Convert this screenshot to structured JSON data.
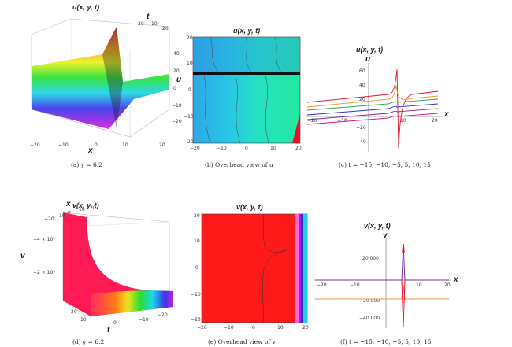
{
  "figure": {
    "panels": [
      {
        "id": "a",
        "title": "u(x, y, t)",
        "caption": "(a) y = 6.2",
        "axes": {
          "x": "x",
          "y": "t",
          "z": "u"
        },
        "x_ticks": [
          "−20",
          "−10",
          "0",
          "10",
          "20"
        ],
        "t_ticks": [
          "−20",
          "10",
          "20"
        ],
        "z_ticks": [
          "40",
          "20",
          "0",
          "−10",
          "−20"
        ]
      },
      {
        "id": "b",
        "title": "u(x, y, t)",
        "caption": "(b) Overhead view of u",
        "x_ticks": [
          "−20",
          "−10",
          "0",
          "10",
          "20"
        ],
        "y_ticks": [
          "20",
          "10",
          "0",
          "−10",
          "−20"
        ]
      },
      {
        "id": "c",
        "title": "u(x, y, t)",
        "caption": "(c) t = −15, −10, −5, 5, 10, 15",
        "axes": {
          "x": "x",
          "y": "u"
        },
        "x_ticks": [
          "−20",
          "−10",
          "10",
          "20"
        ],
        "y_ticks": [
          "60",
          "40",
          "20",
          "−20",
          "−40"
        ]
      },
      {
        "id": "d",
        "title": "v(x, y, t)",
        "caption": "(d) y = 6.2",
        "axes": {
          "x": "x",
          "t": "t",
          "z": "v"
        },
        "x_ticks": [
          "−20",
          "−10",
          "0",
          "10",
          "20"
        ],
        "t_ticks": [
          "20",
          "10",
          "0",
          "−10",
          "−20"
        ],
        "z_ticks": [
          "−4 × 10⁶",
          "−2 × 10⁶"
        ]
      },
      {
        "id": "e",
        "title": "v(x, y, t)",
        "caption": "(e) Overhead view of v",
        "x_ticks": [
          "−20",
          "−10",
          "0",
          "10",
          "20"
        ],
        "y_ticks": [
          "20",
          "10",
          "0",
          "−10",
          "−20"
        ]
      },
      {
        "id": "f",
        "title": "v(x, y, t)",
        "caption": "(f) t = −15, −10, −5, 5, 10, 15",
        "axes": {
          "x": "x",
          "y": "v"
        },
        "x_ticks": [
          "−20",
          "−10",
          "10",
          "20"
        ],
        "y_ticks": [
          "20 000",
          "−20 000",
          "−40 000"
        ]
      }
    ],
    "colors": {
      "red": "#e8112d",
      "orange": "#f29a2e",
      "green": "#2fa84f",
      "blue": "#2636d6",
      "purple": "#7b2ca0",
      "magenta": "#e8157a"
    }
  }
}
